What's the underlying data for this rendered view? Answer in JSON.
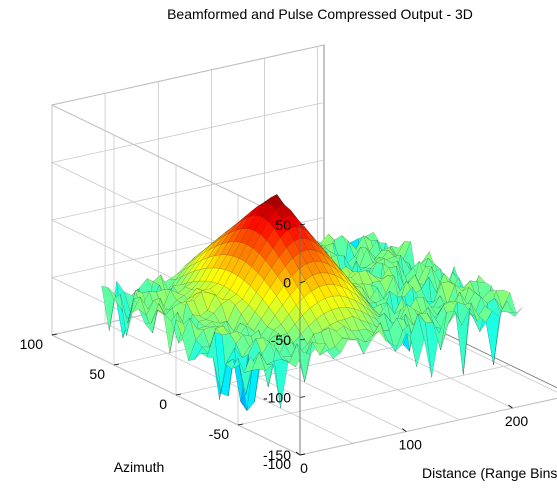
{
  "chart_data": {
    "type": "surface",
    "title": "Beamformed and Pulse Compressed Output - 3D",
    "xlabel": "Distance (Range Bins)",
    "ylabel": "Azimuth",
    "zlabel": "",
    "xlim": [
      0,
      256
    ],
    "ylim": [
      -100,
      100
    ],
    "zlim": [
      -150,
      50
    ],
    "x_ticks": [
      0,
      100,
      200
    ],
    "y_ticks": [
      -100,
      -50,
      0,
      50,
      100
    ],
    "z_ticks": [
      -150,
      -100,
      -50,
      0,
      50
    ],
    "grid": true,
    "colormap": "jet",
    "surface_extent": {
      "x": [
        0,
        256
      ],
      "y": [
        -60,
        60
      ]
    },
    "peak": {
      "x": 105,
      "y": 10,
      "z": 0
    },
    "noise_floor": {
      "mean": -95,
      "min": -150,
      "max": -70
    },
    "ridge_level": -65
  }
}
